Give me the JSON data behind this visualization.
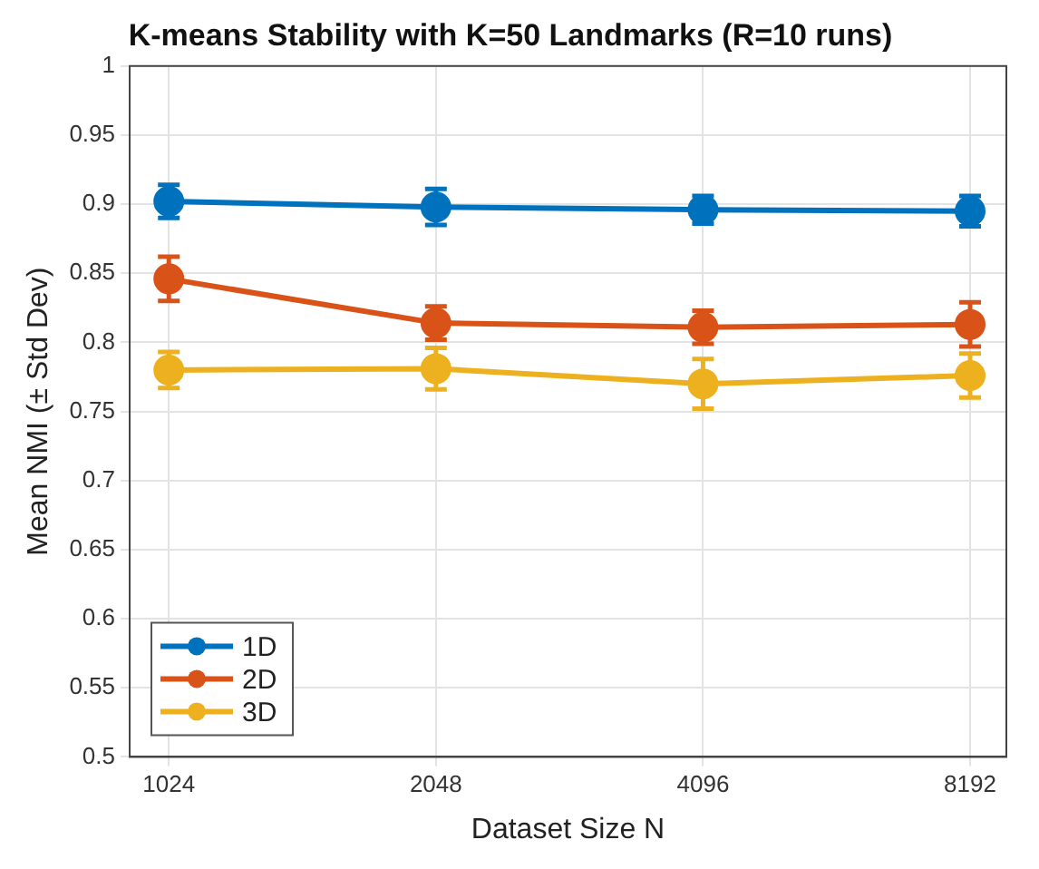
{
  "chart_data": {
    "type": "line",
    "title": "K-means Stability with K=50 Landmarks (R=10 runs)",
    "xlabel": "Dataset Size N",
    "ylabel": "Mean NMI (± Std Dev)",
    "x": [
      1024,
      2048,
      4096,
      8192
    ],
    "log": "x",
    "xlim": [
      925,
      9000
    ],
    "xticks": [
      1024,
      2048,
      4096,
      8192
    ],
    "ylim": [
      0.5,
      1
    ],
    "yticks": [
      0.5,
      0.55,
      0.6,
      0.65,
      0.7,
      0.75,
      0.8,
      0.85,
      0.9,
      0.95,
      1
    ],
    "series": [
      {
        "name": "1D",
        "color": "#0072bd",
        "values": [
          0.902,
          0.898,
          0.896,
          0.895
        ],
        "errors": [
          0.012,
          0.013,
          0.01,
          0.011
        ]
      },
      {
        "name": "2D",
        "color": "#d95319",
        "values": [
          0.846,
          0.814,
          0.811,
          0.813
        ],
        "errors": [
          0.016,
          0.012,
          0.012,
          0.016
        ]
      },
      {
        "name": "3D",
        "color": "#edb120",
        "values": [
          0.78,
          0.781,
          0.77,
          0.776
        ],
        "errors": [
          0.013,
          0.015,
          0.018,
          0.016
        ]
      }
    ],
    "grid": true,
    "legend": "bottom left",
    "marker": "circle",
    "line_style": "solid"
  }
}
